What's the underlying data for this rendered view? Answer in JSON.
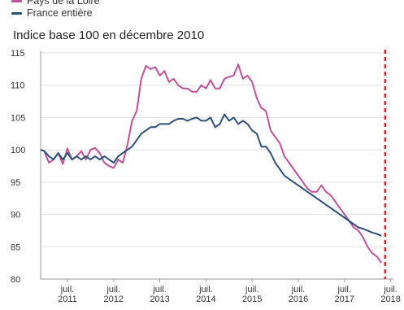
{
  "chart_data": {
    "type": "line",
    "subtitle": "Indice base 100 en décembre 2010",
    "legend": [
      {
        "name": "Pays de la Loire",
        "color": "#c0509a"
      },
      {
        "name": "France entière",
        "color": "#2c4f7c"
      }
    ],
    "y_ticks": [
      "115",
      "110",
      "105",
      "100",
      "95",
      "90",
      "85",
      "80"
    ],
    "x_ticks": [
      {
        "year": 2011,
        "line1": "juil.",
        "line2": "2011"
      },
      {
        "year": 2012,
        "line1": "juil.",
        "line2": "2012"
      },
      {
        "year": 2013,
        "line1": "juil.",
        "line2": "2013"
      },
      {
        "year": 2014,
        "line1": "juil.",
        "line2": "2014"
      },
      {
        "year": 2015,
        "line1": "juil.",
        "line2": "2015"
      },
      {
        "year": 2016,
        "line1": "juil.",
        "line2": "2016"
      },
      {
        "year": 2017,
        "line1": "juil.",
        "line2": "2017"
      },
      {
        "year": 2018,
        "line1": "juil.",
        "line2": "2018"
      }
    ],
    "ylim": [
      80,
      115
    ],
    "xlim": [
      2010.92,
      2018.56
    ],
    "vline": {
      "x": 2018.38,
      "color": "#e8262a"
    },
    "series": [
      {
        "name": "Pays de la Loire",
        "color": "#c0509a",
        "points": [
          [
            2010.92,
            100
          ],
          [
            2011.0,
            99.8
          ],
          [
            2011.1,
            98
          ],
          [
            2011.2,
            98.5
          ],
          [
            2011.3,
            99.5
          ],
          [
            2011.4,
            97.8
          ],
          [
            2011.5,
            100.2
          ],
          [
            2011.6,
            98.5
          ],
          [
            2011.7,
            99
          ],
          [
            2011.8,
            99.8
          ],
          [
            2011.9,
            98.5
          ],
          [
            2012.0,
            100
          ],
          [
            2012.1,
            100.3
          ],
          [
            2012.2,
            99.5
          ],
          [
            2012.3,
            98
          ],
          [
            2012.4,
            97.5
          ],
          [
            2012.5,
            97.2
          ],
          [
            2012.6,
            98.5
          ],
          [
            2012.7,
            98
          ],
          [
            2012.8,
            100.8
          ],
          [
            2012.9,
            104.5
          ],
          [
            2013.0,
            106
          ],
          [
            2013.1,
            111
          ],
          [
            2013.2,
            113
          ],
          [
            2013.3,
            112.5
          ],
          [
            2013.4,
            112.8
          ],
          [
            2013.5,
            111.5
          ],
          [
            2013.6,
            112.2
          ],
          [
            2013.7,
            110.5
          ],
          [
            2013.8,
            111
          ],
          [
            2013.9,
            110
          ],
          [
            2014.0,
            109.5
          ],
          [
            2014.1,
            109.5
          ],
          [
            2014.2,
            109
          ],
          [
            2014.3,
            109
          ],
          [
            2014.4,
            110
          ],
          [
            2014.5,
            109.5
          ],
          [
            2014.6,
            110.8
          ],
          [
            2014.7,
            109.5
          ],
          [
            2014.8,
            109.5
          ],
          [
            2014.9,
            111
          ],
          [
            2015.0,
            111.3
          ],
          [
            2015.1,
            111.5
          ],
          [
            2015.2,
            113.2
          ],
          [
            2015.3,
            111
          ],
          [
            2015.4,
            111.5
          ],
          [
            2015.5,
            110.5
          ],
          [
            2015.6,
            108
          ],
          [
            2015.7,
            106.5
          ],
          [
            2015.8,
            106
          ],
          [
            2015.9,
            103
          ],
          [
            2016.0,
            102
          ],
          [
            2016.1,
            101
          ],
          [
            2016.2,
            99
          ],
          [
            2016.3,
            98
          ],
          [
            2016.4,
            97
          ],
          [
            2016.5,
            96
          ],
          [
            2016.6,
            95
          ],
          [
            2016.7,
            94
          ],
          [
            2016.8,
            93.5
          ],
          [
            2016.9,
            93.5
          ],
          [
            2017.0,
            94.5
          ],
          [
            2017.1,
            93.5
          ],
          [
            2017.2,
            93
          ],
          [
            2017.3,
            92
          ],
          [
            2017.4,
            91
          ],
          [
            2017.5,
            90
          ],
          [
            2017.6,
            89
          ],
          [
            2017.7,
            88
          ],
          [
            2017.8,
            87.5
          ],
          [
            2017.9,
            86.5
          ],
          [
            2018.0,
            85
          ],
          [
            2018.1,
            84
          ],
          [
            2018.2,
            83.5
          ],
          [
            2018.3,
            82.5
          ]
        ]
      },
      {
        "name": "France entière",
        "color": "#2c4f7c",
        "points": [
          [
            2010.92,
            100
          ],
          [
            2011.0,
            99.8
          ],
          [
            2011.1,
            99
          ],
          [
            2011.2,
            98.5
          ],
          [
            2011.3,
            99.5
          ],
          [
            2011.4,
            98.5
          ],
          [
            2011.5,
            99.5
          ],
          [
            2011.6,
            98.5
          ],
          [
            2011.7,
            99
          ],
          [
            2011.8,
            98.5
          ],
          [
            2011.9,
            99
          ],
          [
            2012.0,
            98.5
          ],
          [
            2012.1,
            99
          ],
          [
            2012.2,
            98.5
          ],
          [
            2012.3,
            99
          ],
          [
            2012.4,
            98.5
          ],
          [
            2012.5,
            98
          ],
          [
            2012.6,
            99
          ],
          [
            2012.7,
            99.5
          ],
          [
            2012.8,
            100
          ],
          [
            2012.9,
            100.5
          ],
          [
            2013.0,
            101.5
          ],
          [
            2013.1,
            102.5
          ],
          [
            2013.2,
            103
          ],
          [
            2013.3,
            103.5
          ],
          [
            2013.4,
            103.5
          ],
          [
            2013.5,
            104
          ],
          [
            2013.6,
            104
          ],
          [
            2013.7,
            104
          ],
          [
            2013.8,
            104.5
          ],
          [
            2013.9,
            104.8
          ],
          [
            2014.0,
            104.8
          ],
          [
            2014.1,
            104.5
          ],
          [
            2014.2,
            104.8
          ],
          [
            2014.3,
            105
          ],
          [
            2014.4,
            104.5
          ],
          [
            2014.5,
            104.5
          ],
          [
            2014.6,
            105
          ],
          [
            2014.7,
            103.5
          ],
          [
            2014.8,
            104
          ],
          [
            2014.9,
            105.5
          ],
          [
            2015.0,
            104.5
          ],
          [
            2015.1,
            105
          ],
          [
            2015.2,
            104
          ],
          [
            2015.3,
            104.5
          ],
          [
            2015.4,
            104
          ],
          [
            2015.5,
            103
          ],
          [
            2015.6,
            102.5
          ],
          [
            2015.7,
            100.5
          ],
          [
            2015.8,
            100.5
          ],
          [
            2015.9,
            99.5
          ],
          [
            2016.0,
            98
          ],
          [
            2016.1,
            97
          ],
          [
            2016.2,
            96
          ],
          [
            2016.3,
            95.5
          ],
          [
            2016.4,
            95
          ],
          [
            2016.5,
            94.5
          ],
          [
            2016.6,
            94
          ],
          [
            2016.7,
            93.5
          ],
          [
            2016.8,
            93
          ],
          [
            2016.9,
            92.5
          ],
          [
            2017.0,
            92
          ],
          [
            2017.1,
            91.5
          ],
          [
            2017.2,
            91
          ],
          [
            2017.3,
            90.5
          ],
          [
            2017.4,
            90
          ],
          [
            2017.5,
            89.5
          ],
          [
            2017.6,
            89
          ],
          [
            2017.7,
            88.5
          ],
          [
            2017.8,
            88
          ],
          [
            2017.9,
            87.8
          ],
          [
            2018.0,
            87.5
          ],
          [
            2018.1,
            87.2
          ],
          [
            2018.2,
            87
          ],
          [
            2018.3,
            86.7
          ]
        ]
      }
    ]
  }
}
